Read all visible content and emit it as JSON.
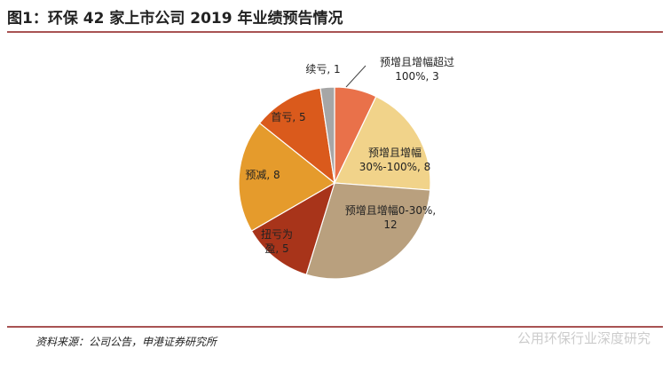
{
  "title": "图1：环保 42 家上市公司 2019 年业绩预告情况",
  "source": "资料来源：公司公告，申港证券研究所",
  "watermark": "公用环保行业深度研究",
  "chart_data": {
    "type": "pie",
    "categories": [
      "预增且增幅超过100%, 3",
      "预增且增幅30%-100%, 8",
      "预增且增幅0-30%, 12",
      "扭亏为盈, 5",
      "预减, 8",
      "首亏, 5",
      "续亏, 1"
    ],
    "values": [
      3,
      8,
      12,
      5,
      8,
      5,
      1
    ],
    "colors": [
      "#e9714a",
      "#f1d38a",
      "#b9a07e",
      "#a8341a",
      "#e59b2c",
      "#da5a1c",
      "#a6a6a6"
    ]
  }
}
